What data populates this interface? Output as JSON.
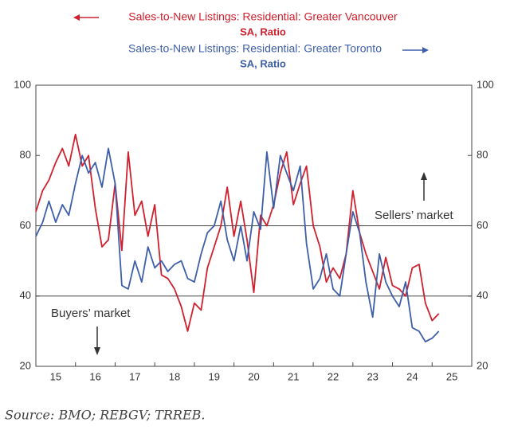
{
  "chart_data": {
    "type": "line",
    "series": [
      {
        "name": "Sales-to-New Listings: Residential: Greater Vancouver",
        "units": "SA, Ratio",
        "color": "#d0202e",
        "axis": "y",
        "x": [
          15,
          15.17,
          15.33,
          15.5,
          15.67,
          15.83,
          16,
          16.17,
          16.33,
          16.5,
          16.67,
          16.83,
          17,
          17.17,
          17.33,
          17.5,
          17.67,
          17.83,
          18,
          18.17,
          18.33,
          18.5,
          18.67,
          18.83,
          19,
          19.17,
          19.33,
          19.5,
          19.67,
          19.83,
          20,
          20.17,
          20.33,
          20.5,
          20.67,
          20.83,
          21,
          21.17,
          21.33,
          21.5,
          21.67,
          21.83,
          22,
          22.17,
          22.33,
          22.5,
          22.67,
          22.83,
          23,
          23.17,
          23.33,
          23.5,
          23.67,
          23.83,
          24,
          24.17,
          24.33,
          24.5,
          24.67,
          24.83,
          25,
          25.17
        ],
        "values": [
          64,
          70,
          73,
          78,
          82,
          77,
          86,
          77,
          80,
          65,
          54,
          56,
          72,
          53,
          81,
          63,
          67,
          57,
          66,
          46,
          45,
          42,
          37,
          30,
          38,
          36,
          48,
          54,
          60,
          71,
          57,
          67,
          56,
          41,
          63,
          60,
          66,
          75,
          81,
          66,
          72,
          77,
          60,
          54,
          44,
          48,
          45,
          52,
          70,
          58,
          52,
          47,
          42,
          51,
          43,
          42,
          40,
          48,
          49,
          38,
          33,
          35
        ]
      },
      {
        "name": "Sales-to-New Listings: Residential: Greater Toronto",
        "units": "SA, Ratio",
        "color": "#3d5ea8",
        "axis": "y2",
        "x": [
          15,
          15.17,
          15.33,
          15.5,
          15.67,
          15.83,
          16,
          16.17,
          16.33,
          16.5,
          16.67,
          16.83,
          17,
          17.17,
          17.33,
          17.5,
          17.67,
          17.83,
          18,
          18.17,
          18.33,
          18.5,
          18.67,
          18.83,
          19,
          19.17,
          19.33,
          19.5,
          19.67,
          19.83,
          20,
          20.17,
          20.33,
          20.5,
          20.67,
          20.83,
          21,
          21.17,
          21.33,
          21.5,
          21.67,
          21.83,
          22,
          22.17,
          22.33,
          22.5,
          22.67,
          22.83,
          23,
          23.17,
          23.33,
          23.5,
          23.67,
          23.83,
          24,
          24.17,
          24.33,
          24.5,
          24.67,
          24.83,
          25,
          25.17
        ],
        "values": [
          57,
          61,
          67,
          61,
          66,
          63,
          72,
          80,
          75,
          78,
          71,
          82,
          72,
          43,
          42,
          50,
          44,
          54,
          48,
          50,
          47,
          49,
          50,
          45,
          44,
          52,
          58,
          60,
          67,
          56,
          50,
          60,
          50,
          64,
          59,
          81,
          65,
          80,
          75,
          70,
          77,
          55,
          42,
          45,
          52,
          42,
          40,
          52,
          64,
          58,
          44,
          34,
          52,
          44,
          40,
          37,
          44,
          31,
          30,
          27,
          28,
          30
        ]
      }
    ],
    "xlim": [
      15,
      26
    ],
    "xticks": [
      {
        "value": 15.5,
        "label": "15"
      },
      {
        "value": 16.5,
        "label": "16"
      },
      {
        "value": 17.5,
        "label": "17"
      },
      {
        "value": 18.5,
        "label": "18"
      },
      {
        "value": 19.5,
        "label": "19"
      },
      {
        "value": 20.5,
        "label": "20"
      },
      {
        "value": 21.5,
        "label": "21"
      },
      {
        "value": 22.5,
        "label": "22"
      },
      {
        "value": 23.5,
        "label": "23"
      },
      {
        "value": 24.5,
        "label": "24"
      },
      {
        "value": 25.5,
        "label": "25"
      }
    ],
    "ylim": [
      20,
      100
    ],
    "yticks": [
      20,
      40,
      60,
      80,
      100
    ],
    "y2lim": [
      20,
      100
    ],
    "y2ticks": [
      20,
      40,
      60,
      80,
      100
    ],
    "hlines": [
      40,
      60
    ],
    "annotations": [
      "Sellers’ market",
      "Buyers’ market"
    ],
    "source": "Source: BMO; REBGV; TRREB."
  }
}
